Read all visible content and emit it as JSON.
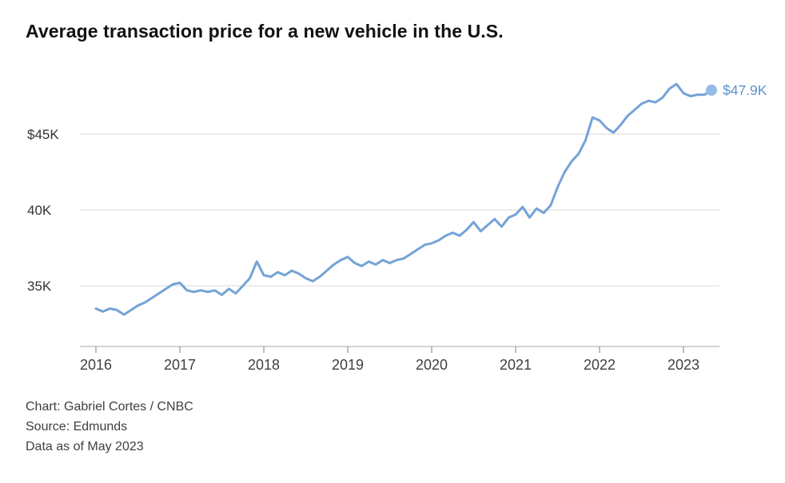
{
  "title": "Average transaction price for a new vehicle in the U.S.",
  "footer": {
    "credit": "Chart: Gabriel Cortes / CNBC",
    "source": "Source: Edmunds",
    "as_of": "Data as of May 2023"
  },
  "chart_data": {
    "type": "line",
    "title": "Average transaction price for a new vehicle in the U.S.",
    "x_unit": "month",
    "x_start": "2016-01",
    "x_end": "2023-05",
    "interval": "monthly",
    "year_ticks": [
      "2016",
      "2017",
      "2018",
      "2019",
      "2020",
      "2021",
      "2022",
      "2023"
    ],
    "y_ticks": [
      {
        "value": 45,
        "label": "$45K"
      },
      {
        "value": 40,
        "label": "40K"
      },
      {
        "value": 35,
        "label": "35K"
      }
    ],
    "ylim": [
      31,
      49
    ],
    "grid": true,
    "legend": "none",
    "end_label": "$47.9K",
    "end_value": 47.9,
    "line_color": "#74a3d6",
    "end_dot_color": "#95bce4",
    "end_label_color": "#5e92c9",
    "series": [
      {
        "name": "Average transaction price ($K USD)",
        "values": [
          33.5,
          33.3,
          33.5,
          33.4,
          33.1,
          33.4,
          33.7,
          33.9,
          34.2,
          34.5,
          34.8,
          35.1,
          35.2,
          34.7,
          34.6,
          34.7,
          34.6,
          34.7,
          34.4,
          34.8,
          34.5,
          35.0,
          35.5,
          36.6,
          35.7,
          35.6,
          35.9,
          35.7,
          36.0,
          35.8,
          35.5,
          35.3,
          35.6,
          36.0,
          36.4,
          36.7,
          36.9,
          36.5,
          36.3,
          36.6,
          36.4,
          36.7,
          36.5,
          36.7,
          36.8,
          37.1,
          37.4,
          37.7,
          37.8,
          38.0,
          38.3,
          38.5,
          38.3,
          38.7,
          39.2,
          38.6,
          39.0,
          39.4,
          38.9,
          39.5,
          39.7,
          40.2,
          39.5,
          40.1,
          39.8,
          40.3,
          41.5,
          42.5,
          43.2,
          43.7,
          44.6,
          46.1,
          45.9,
          45.4,
          45.1,
          45.6,
          46.2,
          46.6,
          47.0,
          47.2,
          47.1,
          47.4,
          48.0,
          48.3,
          47.7,
          47.5,
          47.6,
          47.6,
          47.9
        ]
      }
    ]
  }
}
